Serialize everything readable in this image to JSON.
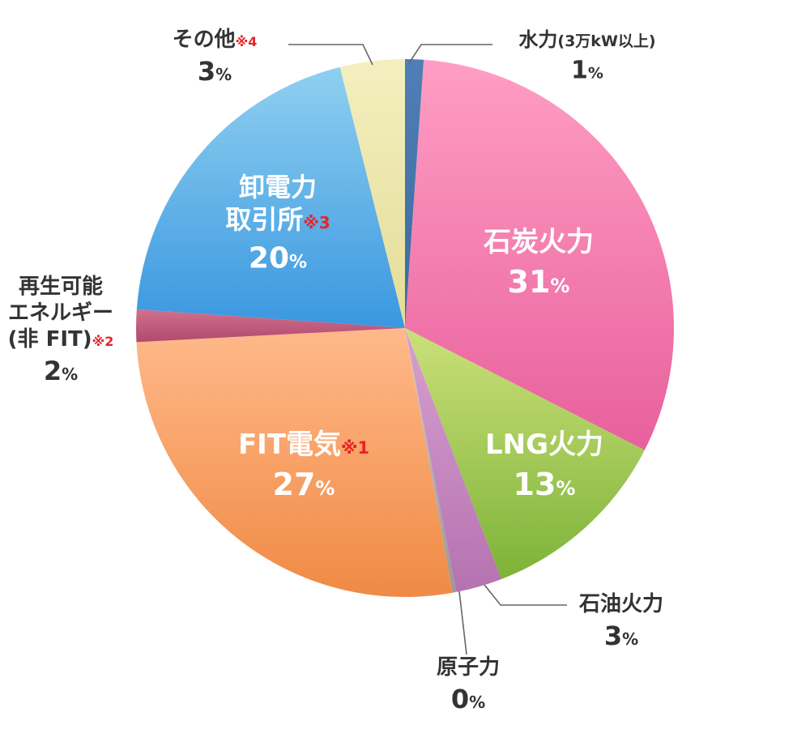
{
  "chart_data": {
    "type": "pie",
    "unit": "%",
    "slices": [
      {
        "key": "hydro",
        "name_lines": [
          "水力"
        ],
        "name_suffix": "(3万kW以上)",
        "note": "",
        "value": 1,
        "value_text": "1",
        "color": "#4f7fb6",
        "color_dark": "#3d6a9e",
        "label_inside": false
      },
      {
        "key": "coal",
        "name_lines": [
          "石炭火力"
        ],
        "name_suffix": "",
        "note": "",
        "value": 31,
        "value_text": "31",
        "color": "#ff9ec4",
        "color_dark": "#e8609c",
        "label_inside": true
      },
      {
        "key": "lng",
        "name_lines": [
          "LNG火力"
        ],
        "name_suffix": "",
        "note": "",
        "value": 13,
        "value_text": "13",
        "color": "#cbe07a",
        "color_dark": "#7db338",
        "label_inside": true
      },
      {
        "key": "oil",
        "name_lines": [
          "石油火力"
        ],
        "name_suffix": "",
        "note": "",
        "value": 3,
        "value_text": "3",
        "color": "#d7a0d0",
        "color_dark": "#b572b0",
        "label_inside": false
      },
      {
        "key": "nuclear",
        "name_lines": [
          "原子力"
        ],
        "name_suffix": "",
        "note": "",
        "value": 0,
        "value_text": "0",
        "color": "#cccccc",
        "color_dark": "#999999",
        "label_inside": false
      },
      {
        "key": "fit",
        "name_lines": [
          "FIT電気"
        ],
        "name_suffix": "",
        "note": "※1",
        "value": 27,
        "value_text": "27",
        "color": "#ffb98a",
        "color_dark": "#f08a45",
        "label_inside": true
      },
      {
        "key": "renewable",
        "name_lines": [
          "再生可能",
          "エネルギー",
          "(非 FIT)"
        ],
        "name_suffix": "",
        "note": "※2",
        "value": 2,
        "value_text": "2",
        "color": "#d2708e",
        "color_dark": "#b04a6e",
        "label_inside": false
      },
      {
        "key": "exchange",
        "name_lines": [
          "卸電力",
          "取引所"
        ],
        "name_suffix": "",
        "note": "※3",
        "value": 20,
        "value_text": "20",
        "color": "#8fd0f0",
        "color_dark": "#3a97e0",
        "label_inside": true
      },
      {
        "key": "other",
        "name_lines": [
          "その他"
        ],
        "name_suffix": "",
        "note": "※4",
        "value": 3,
        "value_text": "3",
        "color": "#f4efbf",
        "color_dark": "#e4dc98",
        "label_inside": false
      }
    ],
    "note_color": "#e8232a",
    "text_color": "#333333",
    "inside_text_color": "#ffffff",
    "leader_color": "#666666"
  }
}
